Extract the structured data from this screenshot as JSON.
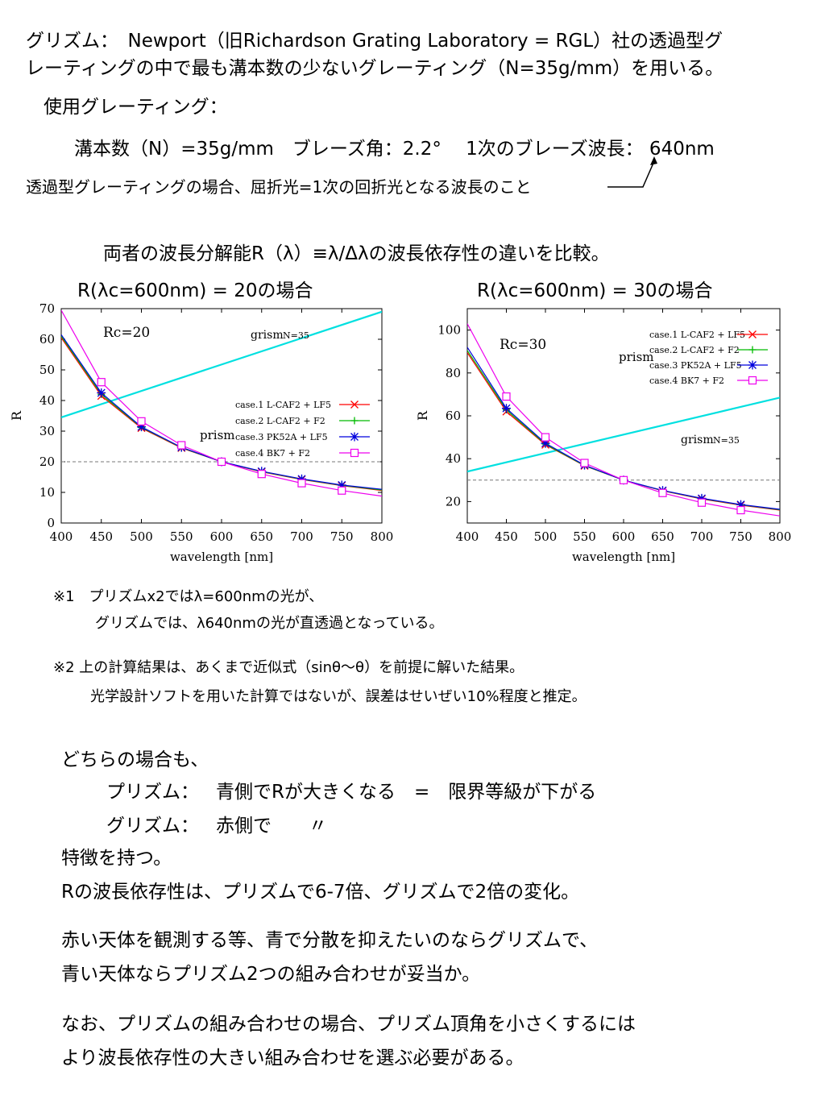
{
  "intro": {
    "line1": "グリズム：　Newport（旧Richardson Grating Laboratory = RGL）社の透過型グ",
    "line2": "レーティングの中で最も溝本数の少ないグレーティング（N=35g/mm）を用いる。",
    "grating_heading": "使用グレーティング：",
    "grating_spec": "溝本数（N）=35g/mm　ブレーズ角：2.2°　 1次のブレーズ波長： 640nm",
    "blaze_note": "透過型グレーティングの場合、屈折光=1次の回折光となる波長のこと"
  },
  "compare_heading": "両者の波長分解能R（λ）≡λ/Δλの波長依存性の違いを比較。",
  "chart_titles": [
    "R(λc=600nm) = 20の場合",
    "R(λc=600nm) = 30の場合"
  ],
  "chart_data": [
    {
      "type": "line",
      "rc_label": "Rc=20",
      "xlabel": "wavelength [nm]",
      "ylabel": "R",
      "xlim": [
        400,
        800
      ],
      "ylim": [
        0,
        70
      ],
      "xticks": [
        400,
        450,
        500,
        550,
        600,
        650,
        700,
        750,
        800
      ],
      "yticks": [
        0,
        10,
        20,
        30,
        40,
        50,
        60,
        70
      ],
      "reference_line": 20,
      "grism_label": "grism",
      "grism_sub": "N=35",
      "prism_label": "prism",
      "grism": {
        "x": [
          400,
          800
        ],
        "y": [
          34.5,
          69
        ]
      },
      "x": [
        400,
        450,
        500,
        550,
        600,
        650,
        700,
        750,
        800
      ],
      "series": [
        {
          "name": "case.1  L-CAF2 + LF5",
          "color": "#ff0000",
          "marker": "x",
          "values": [
            60.5,
            41.5,
            31,
            24.5,
            20,
            16.7,
            14.2,
            12.2,
            10.6
          ]
        },
        {
          "name": "case.2  L-CAF2 + F2",
          "color": "#00bb00",
          "marker": "+",
          "values": [
            61,
            42,
            31.2,
            24.6,
            20,
            16.8,
            14.3,
            12.3,
            10.8
          ]
        },
        {
          "name": "case.3  PK52A + LF5",
          "color": "#0000dd",
          "marker": "*",
          "values": [
            61.5,
            42.5,
            31.4,
            24.7,
            20,
            16.9,
            14.4,
            12.4,
            11
          ]
        },
        {
          "name": "case.4  BK7 + F2",
          "color": "#ee00ee",
          "marker": "square",
          "values": [
            69.5,
            46,
            33.2,
            25.4,
            20,
            16,
            13,
            10.6,
            8.8
          ]
        }
      ]
    },
    {
      "type": "line",
      "rc_label": "Rc=30",
      "xlabel": "wavelength [nm]",
      "ylabel": "R",
      "xlim": [
        400,
        800
      ],
      "ylim": [
        10,
        110
      ],
      "xticks": [
        400,
        450,
        500,
        550,
        600,
        650,
        700,
        750,
        800
      ],
      "yticks": [
        20,
        40,
        60,
        80,
        100
      ],
      "reference_line": 30,
      "grism_label": "grism",
      "grism_sub": "N=35",
      "prism_label": "prism",
      "grism": {
        "x": [
          400,
          800
        ],
        "y": [
          34,
          68.5
        ]
      },
      "x": [
        400,
        450,
        500,
        550,
        600,
        650,
        700,
        750,
        800
      ],
      "series": [
        {
          "name": "case.1  L-CAF2 + LF5",
          "color": "#ff0000",
          "marker": "x",
          "values": [
            89.5,
            62,
            46.5,
            36.7,
            30,
            25,
            21.2,
            18.3,
            16
          ]
        },
        {
          "name": "case.2  L-CAF2 + F2",
          "color": "#00bb00",
          "marker": "+",
          "values": [
            90.5,
            62.8,
            46.8,
            36.8,
            30,
            25.1,
            21.4,
            18.5,
            16.2
          ]
        },
        {
          "name": "case.3  PK52A + LF5",
          "color": "#0000dd",
          "marker": "*",
          "values": [
            92,
            63.5,
            47.2,
            37,
            30,
            25.2,
            21.5,
            18.6,
            16.4
          ]
        },
        {
          "name": "case.4  BK7 + F2",
          "color": "#ee00ee",
          "marker": "square",
          "values": [
            103,
            69,
            50,
            38,
            30,
            24,
            19.5,
            16,
            13.3
          ]
        }
      ]
    }
  ],
  "notes": {
    "n1_line1": "※1　プリズムx2ではλ=600nmの光が、",
    "n1_line2": "グリズムでは、λ640nmの光が直透過となっている。",
    "n2_line1": "※2 上の計算結果は、あくまで近似式（sinθ～θ）を前提に解いた結果。",
    "n2_line2": "光学設計ソフトを用いた計算ではないが、誤差はせいぜい10%程度と推定。"
  },
  "summary": {
    "line1": "どちらの場合も、",
    "prism_label": "プリズム：",
    "prism_text": "青側でRが大きくなる　=　限界等級が下がる",
    "grism_label": "グリズム：",
    "grism_text": "赤側で　　〃",
    "line4": "特徴を持つ。",
    "line5": "Rの波長依存性は、プリズムで6-7倍、グリズムで2倍の変化。",
    "p2_line1": "赤い天体を観測する等、青で分散を抑えたいのならグリズムで、",
    "p2_line2": "青い天体ならプリズム2つの組み合わせが妥当か。",
    "p3_line1": "なお、プリズムの組み合わせの場合、プリズム頂角を小さくするには",
    "p3_line2": "より波長依存性の大きい組み合わせを選ぶ必要がある。"
  }
}
